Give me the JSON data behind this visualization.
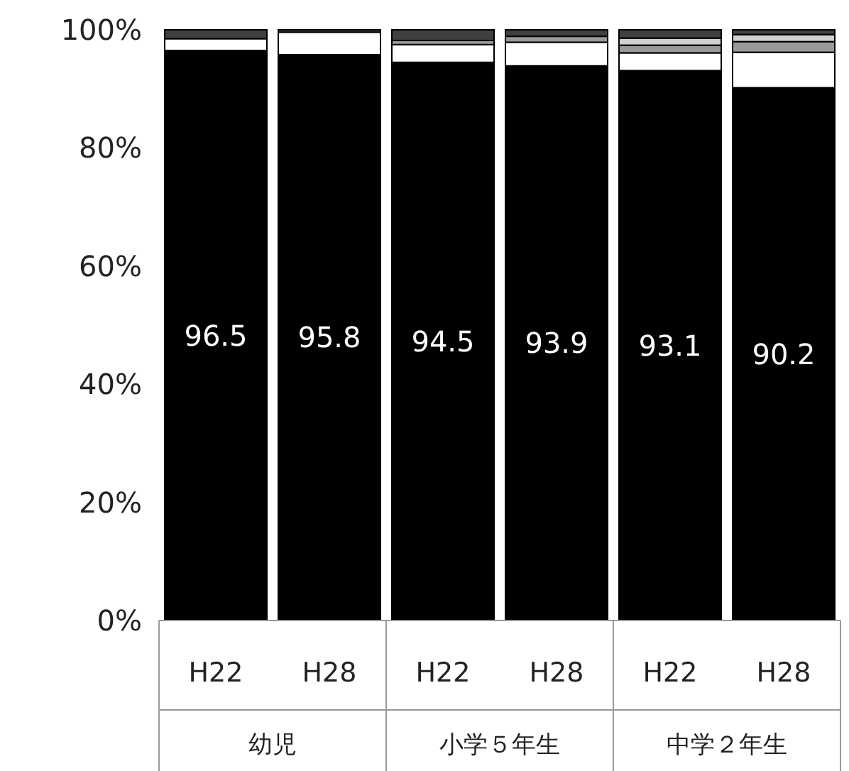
{
  "chart_data": {
    "type": "bar",
    "stacked": true,
    "categories": [
      "H22",
      "H28",
      "H22",
      "H28",
      "H22",
      "H28"
    ],
    "series": [
      {
        "color": "#000000",
        "values": [
          96.5,
          95.8,
          94.5,
          93.9,
          93.1,
          90.2
        ],
        "value_labels": [
          "96.5",
          "95.8",
          "94.5",
          "93.9",
          "93.1",
          "90.2"
        ]
      },
      {
        "color": "#ffffff",
        "values": [
          2.0,
          3.8,
          3.0,
          4.0,
          3.0,
          6.0
        ]
      },
      {
        "color": "#999999",
        "values": [
          0,
          0,
          0.7,
          1.0,
          1.3,
          1.8
        ]
      },
      {
        "color": "#d0d0d0",
        "values": [
          0,
          0,
          0,
          0,
          1.2,
          1.2
        ]
      },
      {
        "color": "#404040",
        "values": [
          1.5,
          0.4,
          1.8,
          1.1,
          1.4,
          0.8
        ]
      }
    ],
    "annotations": [
      "幼児",
      "小学５年生",
      "中学２年生"
    ],
    "ylim": [
      0,
      100
    ],
    "yticks": [
      {
        "value": 0,
        "label": "0%"
      },
      {
        "value": 20,
        "label": "20%"
      },
      {
        "value": 40,
        "label": "40%"
      },
      {
        "value": 60,
        "label": "60%"
      },
      {
        "value": 80,
        "label": "80%"
      },
      {
        "value": 100,
        "label": "100%"
      }
    ],
    "grid": false
  }
}
